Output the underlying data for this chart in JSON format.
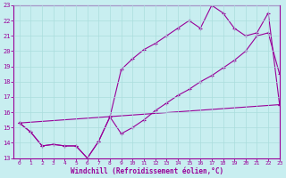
{
  "xlabel": "Windchill (Refroidissement éolien,°C)",
  "xlim": [
    -0.5,
    23
  ],
  "ylim": [
    13,
    23
  ],
  "xticks": [
    0,
    1,
    2,
    3,
    4,
    5,
    6,
    7,
    8,
    9,
    10,
    11,
    12,
    13,
    14,
    15,
    16,
    17,
    18,
    19,
    20,
    21,
    22,
    23
  ],
  "yticks": [
    13,
    14,
    15,
    16,
    17,
    18,
    19,
    20,
    21,
    22,
    23
  ],
  "bg_color": "#c8eef0",
  "line_color": "#990099",
  "grid_color": "#aadddd",
  "line1_x": [
    0,
    1,
    2,
    3,
    4,
    5,
    6,
    7,
    8,
    9,
    10,
    11,
    12,
    13,
    14,
    15,
    16,
    17,
    18,
    19,
    20,
    21,
    22,
    23
  ],
  "line1_y": [
    15.3,
    14.7,
    13.8,
    13.9,
    13.8,
    13.8,
    13.0,
    14.1,
    15.7,
    14.6,
    15.0,
    15.5,
    16.1,
    16.6,
    17.1,
    17.5,
    18.0,
    18.4,
    18.9,
    19.4,
    20.0,
    21.0,
    21.2,
    18.5
  ],
  "line2_x": [
    0,
    1,
    2,
    3,
    4,
    5,
    6,
    7,
    8,
    9,
    10,
    11,
    12,
    13,
    14,
    15,
    16,
    17,
    18,
    19,
    20,
    21,
    22,
    23
  ],
  "line2_y": [
    15.3,
    14.7,
    13.8,
    13.9,
    13.8,
    13.8,
    13.0,
    14.1,
    15.7,
    18.8,
    19.5,
    20.1,
    20.5,
    21.0,
    21.5,
    22.0,
    21.5,
    23.0,
    22.5,
    21.5,
    21.0,
    21.2,
    22.5,
    16.5
  ],
  "line3_x": [
    0,
    23
  ],
  "line3_y": [
    15.3,
    16.5
  ]
}
